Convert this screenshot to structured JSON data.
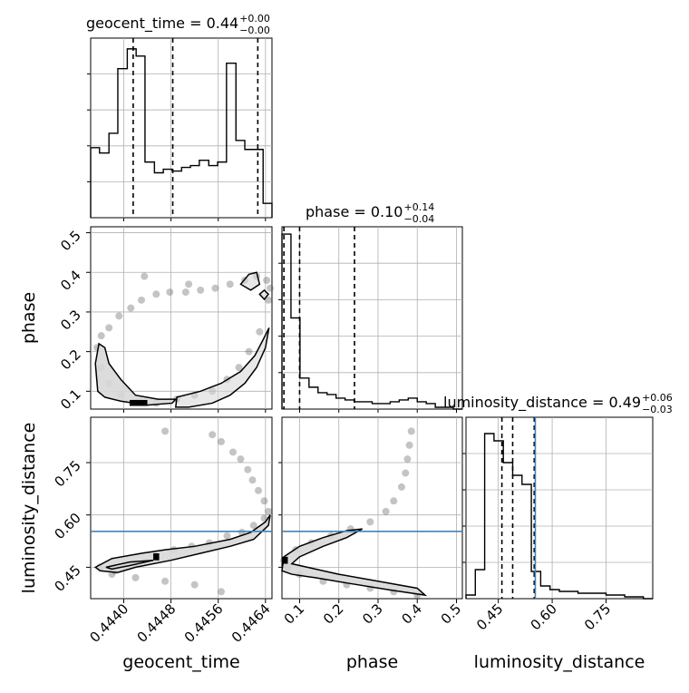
{
  "chart_data": {
    "type": "corner",
    "parameters": [
      "geocent_time",
      "phase",
      "luminosity_distance"
    ],
    "axis_labels": {
      "x": [
        "geocent_time",
        "phase",
        "luminosity_distance"
      ],
      "y": [
        "phase",
        "luminosity_distance"
      ]
    },
    "ranges": {
      "geocent_time": [
        0.44344,
        0.44651
      ],
      "phase": [
        0.055,
        0.515
      ],
      "luminosity_distance": [
        0.36,
        0.88
      ]
    },
    "ticks": {
      "geocent_time": {
        "values": [
          0.444,
          0.4448,
          0.4456,
          0.4464
        ],
        "labels": [
          "0.4440",
          "0.4448",
          "0.4456",
          "0.4464"
        ]
      },
      "phase": {
        "values": [
          0.1,
          0.2,
          0.3,
          0.4,
          0.5
        ],
        "labels": [
          "0.1",
          "0.2",
          "0.3",
          "0.4",
          "0.5"
        ]
      },
      "luminosity_distance": {
        "values": [
          0.45,
          0.6,
          0.75
        ],
        "labels": [
          "0.45",
          "0.60",
          "0.75"
        ]
      }
    },
    "titles": {
      "geocent_time": {
        "name": "geocent_time",
        "median": "0.44",
        "plus": "+0.00",
        "minus": "−0.00"
      },
      "phase": {
        "name": "phase",
        "median": "0.10",
        "plus": "+0.14",
        "minus": "−0.04"
      },
      "luminosity_distance": {
        "name": "luminosity_distance",
        "median": "0.49",
        "plus": "+0.06",
        "minus": "−0.03"
      }
    },
    "histograms": {
      "geocent_time": {
        "edges": [
          0.44344,
          0.44359,
          0.44375,
          0.4439,
          0.44406,
          0.44421,
          0.44436,
          0.44452,
          0.44467,
          0.44482,
          0.44498,
          0.44513,
          0.44528,
          0.44544,
          0.44559,
          0.44574,
          0.4459,
          0.44605,
          0.44621,
          0.44636,
          0.44651
        ],
        "counts": [
          0.39,
          0.36,
          0.47,
          0.83,
          0.94,
          0.9,
          0.31,
          0.25,
          0.27,
          0.26,
          0.28,
          0.29,
          0.32,
          0.29,
          0.31,
          0.86,
          0.43,
          0.38,
          0.38,
          0.08
        ],
        "quantiles": [
          0.44416,
          0.44483,
          0.44627
        ]
      },
      "phase": {
        "edges": [
          0.055,
          0.078,
          0.101,
          0.124,
          0.147,
          0.17,
          0.193,
          0.216,
          0.239,
          0.262,
          0.285,
          0.308,
          0.331,
          0.354,
          0.377,
          0.4,
          0.423,
          0.446,
          0.469,
          0.492,
          0.515
        ],
        "counts": [
          0.96,
          0.5,
          0.17,
          0.12,
          0.09,
          0.08,
          0.06,
          0.05,
          0.04,
          0.04,
          0.03,
          0.03,
          0.04,
          0.05,
          0.06,
          0.04,
          0.03,
          0.01,
          0.01,
          0.0
        ],
        "quantiles": [
          0.06,
          0.1,
          0.24
        ]
      },
      "luminosity_distance": {
        "edges": [
          0.36,
          0.386,
          0.412,
          0.438,
          0.464,
          0.49,
          0.516,
          0.542,
          0.568,
          0.594,
          0.62,
          0.646,
          0.672,
          0.698,
          0.724,
          0.75,
          0.776,
          0.802,
          0.828,
          0.854,
          0.88
        ],
        "counts": [
          0.02,
          0.16,
          0.91,
          0.87,
          0.75,
          0.68,
          0.63,
          0.15,
          0.07,
          0.05,
          0.04,
          0.04,
          0.03,
          0.03,
          0.03,
          0.02,
          0.02,
          0.01,
          0.01,
          0.0
        ],
        "quantiles": [
          0.46,
          0.49,
          0.55
        ]
      }
    },
    "truth": {
      "luminosity_distance": 0.553
    },
    "scatter": {
      "geocent_time_vs_phase": [
        {
          "x": 0.44355,
          "y": 0.21
        },
        {
          "x": 0.44362,
          "y": 0.24
        },
        {
          "x": 0.44375,
          "y": 0.26
        },
        {
          "x": 0.44392,
          "y": 0.29
        },
        {
          "x": 0.44412,
          "y": 0.31
        },
        {
          "x": 0.4443,
          "y": 0.33
        },
        {
          "x": 0.44455,
          "y": 0.345
        },
        {
          "x": 0.44478,
          "y": 0.35
        },
        {
          "x": 0.44505,
          "y": 0.35
        },
        {
          "x": 0.4453,
          "y": 0.355
        },
        {
          "x": 0.44555,
          "y": 0.36
        },
        {
          "x": 0.4458,
          "y": 0.37
        },
        {
          "x": 0.44605,
          "y": 0.38
        },
        {
          "x": 0.44625,
          "y": 0.39
        },
        {
          "x": 0.44642,
          "y": 0.38
        },
        {
          "x": 0.44648,
          "y": 0.36
        },
        {
          "x": 0.44645,
          "y": 0.33
        },
        {
          "x": 0.4463,
          "y": 0.25
        },
        {
          "x": 0.44612,
          "y": 0.2
        },
        {
          "x": 0.44595,
          "y": 0.16
        },
        {
          "x": 0.44575,
          "y": 0.13
        },
        {
          "x": 0.4455,
          "y": 0.1
        },
        {
          "x": 0.4452,
          "y": 0.09
        },
        {
          "x": 0.4449,
          "y": 0.08
        },
        {
          "x": 0.44455,
          "y": 0.07
        },
        {
          "x": 0.44425,
          "y": 0.075
        },
        {
          "x": 0.44395,
          "y": 0.09
        },
        {
          "x": 0.44375,
          "y": 0.12
        },
        {
          "x": 0.44362,
          "y": 0.16
        },
        {
          "x": 0.44435,
          "y": 0.39
        },
        {
          "x": 0.4451,
          "y": 0.37
        }
      ],
      "geocent_time_vs_luminosity_distance": [
        {
          "x": 0.4436,
          "y": 0.45
        },
        {
          "x": 0.44385,
          "y": 0.44
        },
        {
          "x": 0.4442,
          "y": 0.46
        },
        {
          "x": 0.44452,
          "y": 0.48
        },
        {
          "x": 0.44485,
          "y": 0.5
        },
        {
          "x": 0.44515,
          "y": 0.51
        },
        {
          "x": 0.44545,
          "y": 0.52
        },
        {
          "x": 0.44575,
          "y": 0.54
        },
        {
          "x": 0.446,
          "y": 0.55
        },
        {
          "x": 0.4462,
          "y": 0.57
        },
        {
          "x": 0.44638,
          "y": 0.59
        },
        {
          "x": 0.44645,
          "y": 0.61
        },
        {
          "x": 0.44638,
          "y": 0.64
        },
        {
          "x": 0.44628,
          "y": 0.67
        },
        {
          "x": 0.44618,
          "y": 0.7
        },
        {
          "x": 0.4461,
          "y": 0.73
        },
        {
          "x": 0.44598,
          "y": 0.76
        },
        {
          "x": 0.44585,
          "y": 0.78
        },
        {
          "x": 0.44565,
          "y": 0.81
        },
        {
          "x": 0.4455,
          "y": 0.83
        },
        {
          "x": 0.4438,
          "y": 0.43
        },
        {
          "x": 0.4442,
          "y": 0.42
        },
        {
          "x": 0.4447,
          "y": 0.41
        },
        {
          "x": 0.4452,
          "y": 0.4
        },
        {
          "x": 0.44565,
          "y": 0.38
        },
        {
          "x": 0.4447,
          "y": 0.84
        }
      ],
      "phase_vs_luminosity_distance": [
        {
          "x": 0.06,
          "y": 0.47
        },
        {
          "x": 0.09,
          "y": 0.5
        },
        {
          "x": 0.13,
          "y": 0.52
        },
        {
          "x": 0.18,
          "y": 0.54
        },
        {
          "x": 0.23,
          "y": 0.56
        },
        {
          "x": 0.28,
          "y": 0.58
        },
        {
          "x": 0.32,
          "y": 0.61
        },
        {
          "x": 0.34,
          "y": 0.64
        },
        {
          "x": 0.36,
          "y": 0.68
        },
        {
          "x": 0.37,
          "y": 0.72
        },
        {
          "x": 0.375,
          "y": 0.76
        },
        {
          "x": 0.38,
          "y": 0.8
        },
        {
          "x": 0.385,
          "y": 0.84
        },
        {
          "x": 0.1,
          "y": 0.43
        },
        {
          "x": 0.16,
          "y": 0.41
        },
        {
          "x": 0.22,
          "y": 0.4
        },
        {
          "x": 0.28,
          "y": 0.39
        },
        {
          "x": 0.34,
          "y": 0.38
        },
        {
          "x": 0.4,
          "y": 0.37
        },
        {
          "x": 0.07,
          "y": 0.45
        }
      ]
    },
    "contours": {
      "geocent_time_vs_phase": [
        [
          [
            0.44356,
            0.1
          ],
          [
            0.44352,
            0.17
          ],
          [
            0.44358,
            0.22
          ],
          [
            0.44368,
            0.21
          ],
          [
            0.44375,
            0.17
          ],
          [
            0.44395,
            0.13
          ],
          [
            0.4442,
            0.09
          ],
          [
            0.44458,
            0.08
          ],
          [
            0.44488,
            0.08
          ],
          [
            0.44482,
            0.07
          ],
          [
            0.4444,
            0.065
          ],
          [
            0.44395,
            0.075
          ],
          [
            0.44368,
            0.085
          ],
          [
            0.44356,
            0.1
          ]
        ],
        [
          [
            0.44488,
            0.06
          ],
          [
            0.4449,
            0.085
          ],
          [
            0.4453,
            0.1
          ],
          [
            0.44565,
            0.12
          ],
          [
            0.44598,
            0.15
          ],
          [
            0.44622,
            0.19
          ],
          [
            0.44636,
            0.23
          ],
          [
            0.44646,
            0.26
          ],
          [
            0.4464,
            0.21
          ],
          [
            0.44625,
            0.16
          ],
          [
            0.44605,
            0.12
          ],
          [
            0.4458,
            0.09
          ],
          [
            0.4455,
            0.07
          ],
          [
            0.4451,
            0.06
          ],
          [
            0.44488,
            0.06
          ]
        ],
        [
          [
            0.44598,
            0.37
          ],
          [
            0.44612,
            0.395
          ],
          [
            0.44625,
            0.4
          ],
          [
            0.4463,
            0.37
          ],
          [
            0.44615,
            0.355
          ],
          [
            0.44598,
            0.37
          ]
        ],
        [
          [
            0.4463,
            0.345
          ],
          [
            0.44638,
            0.355
          ],
          [
            0.44645,
            0.345
          ],
          [
            0.44638,
            0.332
          ],
          [
            0.4463,
            0.345
          ]
        ]
      ],
      "geocent_time_vs_luminosity_distance": [
        [
          [
            0.44352,
            0.45
          ],
          [
            0.4438,
            0.475
          ],
          [
            0.4443,
            0.49
          ],
          [
            0.4447,
            0.5
          ],
          [
            0.4452,
            0.51
          ],
          [
            0.4458,
            0.53
          ],
          [
            0.44615,
            0.55
          ],
          [
            0.4464,
            0.58
          ],
          [
            0.44648,
            0.6
          ],
          [
            0.44645,
            0.57
          ],
          [
            0.4462,
            0.53
          ],
          [
            0.4458,
            0.51
          ],
          [
            0.4453,
            0.49
          ],
          [
            0.4448,
            0.47
          ],
          [
            0.4442,
            0.45
          ],
          [
            0.4439,
            0.435
          ],
          [
            0.4436,
            0.44
          ],
          [
            0.44352,
            0.45
          ]
        ],
        [
          [
            0.4437,
            0.45
          ],
          [
            0.4441,
            0.465
          ],
          [
            0.4445,
            0.47
          ],
          [
            0.4441,
            0.455
          ],
          [
            0.4438,
            0.445
          ],
          [
            0.4437,
            0.45
          ]
        ]
      ],
      "phase_vs_luminosity_distance": [
        [
          [
            0.055,
            0.44
          ],
          [
            0.06,
            0.48
          ],
          [
            0.1,
            0.51
          ],
          [
            0.16,
            0.535
          ],
          [
            0.22,
            0.555
          ],
          [
            0.26,
            0.56
          ],
          [
            0.22,
            0.535
          ],
          [
            0.16,
            0.51
          ],
          [
            0.1,
            0.48
          ],
          [
            0.08,
            0.46
          ],
          [
            0.12,
            0.45
          ],
          [
            0.2,
            0.43
          ],
          [
            0.3,
            0.41
          ],
          [
            0.4,
            0.39
          ],
          [
            0.42,
            0.37
          ],
          [
            0.33,
            0.385
          ],
          [
            0.22,
            0.405
          ],
          [
            0.14,
            0.42
          ],
          [
            0.08,
            0.43
          ],
          [
            0.055,
            0.44
          ]
        ]
      ]
    },
    "dense_blobs": {
      "geocent_time_vs_phase": [
        {
          "x": [
            0.4441,
            0.4444
          ],
          "y": [
            0.063,
            0.078
          ]
        }
      ],
      "geocent_time_vs_luminosity_distance": [
        {
          "x": [
            0.4445,
            0.4446
          ],
          "y": [
            0.47,
            0.49
          ]
        }
      ],
      "phase_vs_luminosity_distance": [
        {
          "x": [
            0.055,
            0.07
          ],
          "y": [
            0.46,
            0.48
          ]
        }
      ]
    }
  },
  "colors": {
    "truth_line": "#4682b4",
    "contour": "#000000",
    "grid": "#b0b0b0",
    "fill": "#d8d8d8",
    "scatter": "#555555"
  }
}
